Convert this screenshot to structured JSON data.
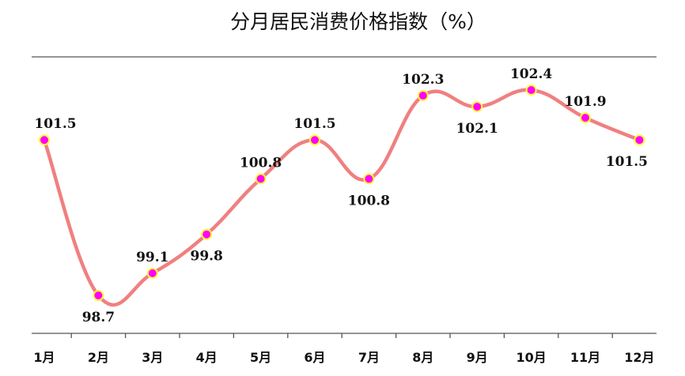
{
  "chart_data": {
    "type": "line",
    "title": "分月居民消费价格指数（%）",
    "categories": [
      "1月",
      "2月",
      "3月",
      "4月",
      "5月",
      "6月",
      "7月",
      "8月",
      "9月",
      "10月",
      "11月",
      "12月"
    ],
    "values": [
      101.5,
      98.7,
      99.1,
      99.8,
      100.8,
      101.5,
      100.8,
      102.3,
      102.1,
      102.4,
      101.9,
      101.5
    ],
    "data_labels": [
      "101.5",
      "98.7",
      "99.1",
      "99.8",
      "100.8",
      "101.5",
      "100.8",
      "102.3",
      "102.1",
      "102.4",
      "101.9",
      "101.5"
    ],
    "label_positions": [
      "above",
      "below",
      "above",
      "below",
      "above",
      "above",
      "below",
      "above",
      "below",
      "above",
      "above",
      "below"
    ],
    "xlabel": "",
    "ylabel": "",
    "grid": false,
    "colors": {
      "line": "#f08080",
      "marker_fill": "#ff00ff",
      "marker_edge": "#ffff33",
      "axis": "#555555"
    }
  }
}
